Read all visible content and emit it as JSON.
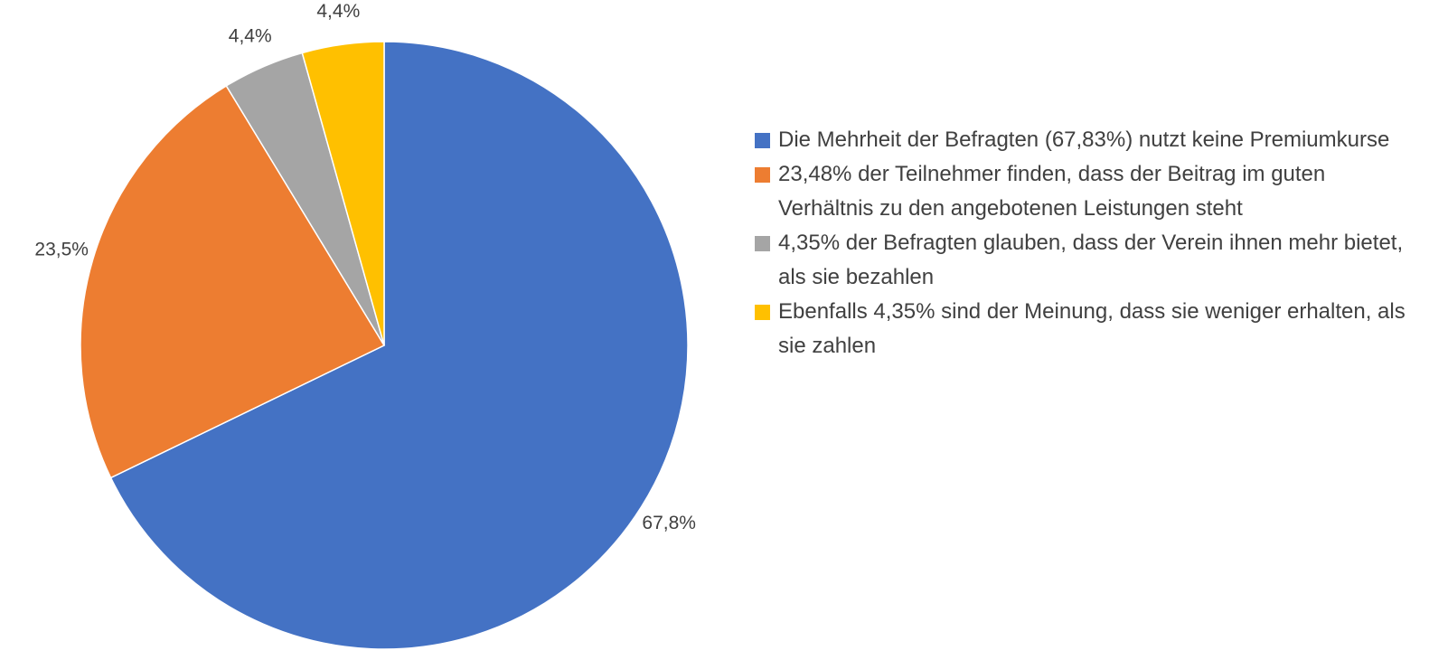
{
  "chart_data": {
    "type": "pie",
    "categories": [
      "Die Mehrheit der Befragten (67,83%) nutzt keine Premiumkurse",
      "23,48% der Teilnehmer finden, dass der Beitrag im guten Verhältnis zu den angebotenen Leistungen steht",
      "4,35% der Befragten glauben, dass der Verein ihnen mehr bietet, als sie bezahlen",
      "Ebenfalls 4,35% sind der Meinung, dass sie weniger erhalten, als sie zahlen"
    ],
    "values": [
      67.83,
      23.48,
      4.35,
      4.35
    ],
    "value_labels": [
      "67,8%",
      "23,5%",
      "4,4%",
      "4,4%"
    ],
    "colors": [
      "#4472c4",
      "#ed7d31",
      "#a5a5a5",
      "#ffc000"
    ],
    "legend": "right"
  }
}
